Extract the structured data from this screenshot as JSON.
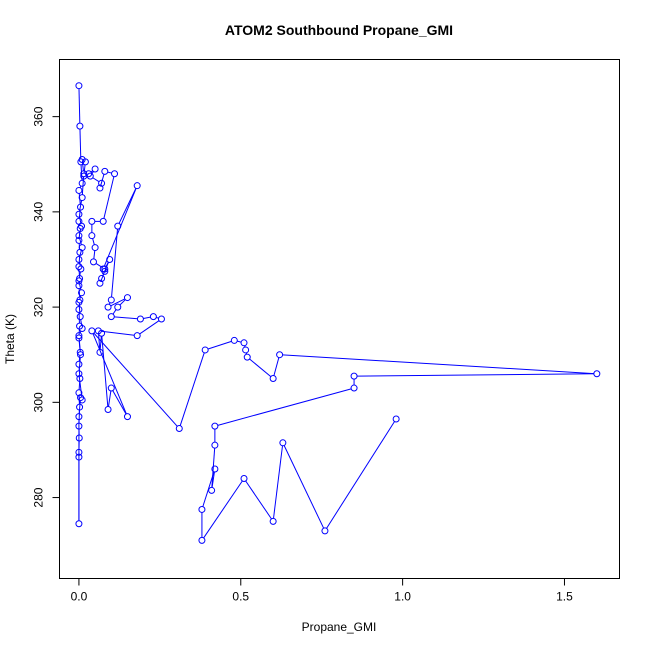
{
  "chart_data": {
    "type": "scatter",
    "title": "ATOM2 Southbound Propane_GMI",
    "xlabel": "Propane_GMI",
    "ylabel": "Theta (K)",
    "xlim": [
      -0.06,
      1.67
    ],
    "ylim": [
      263,
      372
    ],
    "x_ticks": [
      0.0,
      0.5,
      1.0,
      1.5
    ],
    "x_tick_labels": [
      "0.0",
      "0.5",
      "1.0",
      "1.5"
    ],
    "y_ticks": [
      280,
      300,
      320,
      340,
      360
    ],
    "y_tick_labels": [
      "280",
      "300",
      "320",
      "340",
      "360"
    ],
    "grid": false,
    "color": "#0000ff",
    "series": [
      {
        "mode": "lines+markers",
        "points": [
          [
            0.0,
            366.5
          ],
          [
            0.003,
            358.0
          ],
          [
            0.006,
            350.5
          ],
          [
            0.01,
            346.0
          ],
          [
            0.0,
            344.5
          ],
          [
            0.005,
            341.0
          ],
          [
            0.0,
            338.0
          ],
          [
            0.004,
            336.5
          ],
          [
            0.0,
            334.0
          ],
          [
            0.003,
            331.5
          ],
          [
            0.0,
            328.5
          ],
          [
            0.002,
            326.0
          ],
          [
            0.0,
            324.5
          ],
          [
            0.003,
            321.5
          ],
          [
            0.0,
            319.5
          ],
          [
            0.002,
            316.0
          ],
          [
            0.0,
            313.5
          ],
          [
            0.004,
            310.5
          ],
          [
            0.0,
            308.0
          ],
          [
            0.003,
            305.0
          ],
          [
            0.0,
            302.0
          ],
          [
            0.002,
            299.0
          ],
          [
            0.0,
            295.0
          ],
          [
            0.001,
            292.5
          ],
          [
            0.0,
            289.5
          ],
          [
            0.0,
            288.5
          ],
          [
            0.0,
            274.5
          ],
          [
            0.0,
            297.0
          ],
          [
            0.005,
            301.0
          ],
          [
            0.01,
            300.5
          ],
          [
            0.0,
            306.0
          ],
          [
            0.005,
            310.0
          ],
          [
            0.0,
            314.0
          ],
          [
            0.01,
            315.5
          ],
          [
            0.004,
            318.0
          ],
          [
            0.0,
            321.0
          ],
          [
            0.008,
            323.0
          ],
          [
            0.0,
            325.5
          ],
          [
            0.006,
            328.0
          ],
          [
            0.0,
            330.0
          ],
          [
            0.01,
            332.5
          ],
          [
            0.0,
            335.0
          ],
          [
            0.008,
            337.0
          ],
          [
            0.0,
            339.5
          ],
          [
            0.01,
            343.0
          ],
          [
            0.015,
            348.0
          ],
          [
            0.01,
            351.0
          ],
          [
            0.02,
            350.5
          ],
          [
            0.015,
            347.5
          ],
          [
            0.03,
            348.0
          ],
          [
            0.05,
            349.0
          ],
          [
            0.035,
            347.5
          ],
          [
            0.07,
            346.0
          ],
          [
            0.065,
            345.0
          ],
          [
            0.08,
            348.5
          ],
          [
            0.11,
            348.0
          ],
          [
            0.075,
            338.0
          ],
          [
            0.04,
            338.0
          ],
          [
            0.04,
            335.0
          ],
          [
            0.05,
            332.5
          ],
          [
            0.045,
            329.5
          ],
          [
            0.08,
            328.0
          ],
          [
            0.095,
            330.0
          ],
          [
            0.07,
            326.0
          ],
          [
            0.065,
            325.0
          ],
          [
            0.08,
            327.5
          ],
          [
            0.075,
            328.0
          ],
          [
            0.18,
            345.5
          ],
          [
            0.12,
            337.0
          ],
          [
            0.1,
            321.5
          ],
          [
            0.09,
            320.0
          ],
          [
            0.15,
            322.0
          ],
          [
            0.12,
            320.0
          ],
          [
            0.1,
            318.0
          ],
          [
            0.19,
            317.5
          ],
          [
            0.23,
            318.0
          ],
          [
            0.255,
            317.5
          ],
          [
            0.18,
            314.0
          ],
          [
            0.06,
            315.0
          ],
          [
            0.065,
            310.5
          ],
          [
            0.07,
            314.5
          ],
          [
            0.09,
            298.5
          ],
          [
            0.1,
            303.0
          ],
          [
            0.15,
            297.0
          ],
          [
            0.04,
            315.0
          ],
          [
            0.31,
            294.5
          ],
          [
            0.39,
            311.0
          ],
          [
            0.48,
            313.0
          ],
          [
            0.51,
            312.5
          ],
          [
            0.515,
            311.0
          ],
          [
            0.52,
            309.5
          ],
          [
            0.6,
            305.0
          ],
          [
            0.62,
            310.0
          ],
          [
            1.6,
            306.0
          ],
          [
            0.85,
            305.5
          ],
          [
            0.85,
            303.0
          ],
          [
            0.42,
            295.0
          ],
          [
            0.42,
            291.0
          ],
          [
            0.41,
            281.5
          ],
          [
            0.42,
            286.0
          ],
          [
            0.38,
            277.5
          ],
          [
            0.38,
            271.0
          ],
          [
            0.51,
            284.0
          ],
          [
            0.6,
            275.0
          ],
          [
            0.63,
            291.5
          ],
          [
            0.76,
            273.0
          ],
          [
            0.98,
            296.5
          ]
        ]
      }
    ]
  }
}
